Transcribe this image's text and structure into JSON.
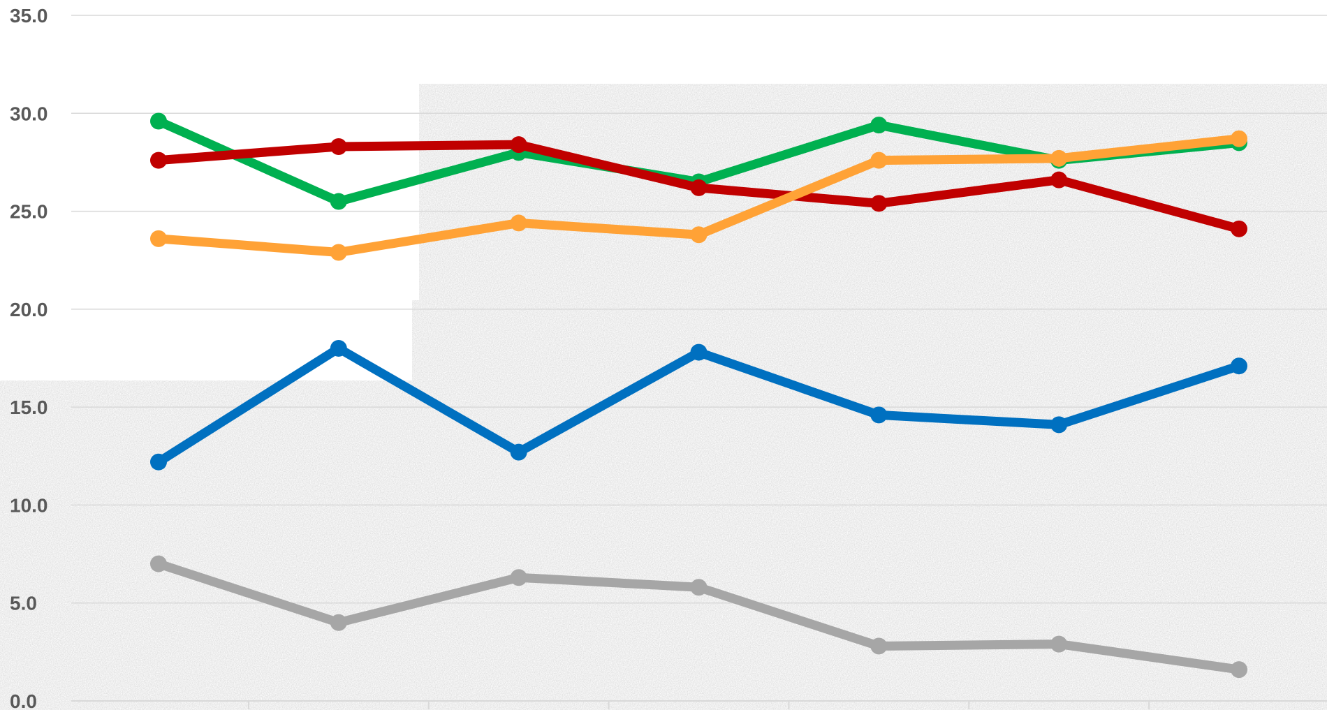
{
  "chart_data": {
    "type": "line",
    "title": "",
    "xlabel": "",
    "ylabel": "",
    "ylim": [
      0,
      35
    ],
    "yticks": [
      "0.0",
      "5.0",
      "10.0",
      "15.0",
      "20.0",
      "25.0",
      "30.0",
      "35.0"
    ],
    "ytick_values": [
      0,
      5,
      10,
      15,
      20,
      25,
      30,
      35
    ],
    "x": [
      1,
      2,
      3,
      4,
      5,
      6,
      7
    ],
    "categories": [
      "",
      "",
      "",
      "",
      "",
      "",
      ""
    ],
    "grid": true,
    "legend": "none",
    "series": [
      {
        "color": "#00b050",
        "values": [
          29.6,
          25.5,
          28.0,
          26.5,
          29.4,
          27.6,
          28.5
        ]
      },
      {
        "color": "#c00000",
        "values": [
          27.6,
          28.3,
          28.4,
          26.2,
          25.4,
          26.6,
          24.1
        ]
      },
      {
        "color": "#ffa236",
        "values": [
          23.6,
          22.9,
          24.4,
          23.8,
          27.6,
          27.7,
          28.7
        ]
      },
      {
        "color": "#0070c0",
        "values": [
          12.2,
          18.0,
          12.7,
          17.8,
          14.6,
          14.1,
          17.1
        ]
      },
      {
        "color": "#a6a6a6",
        "values": [
          7.0,
          4.0,
          6.3,
          5.8,
          2.8,
          2.9,
          1.6
        ]
      }
    ]
  }
}
